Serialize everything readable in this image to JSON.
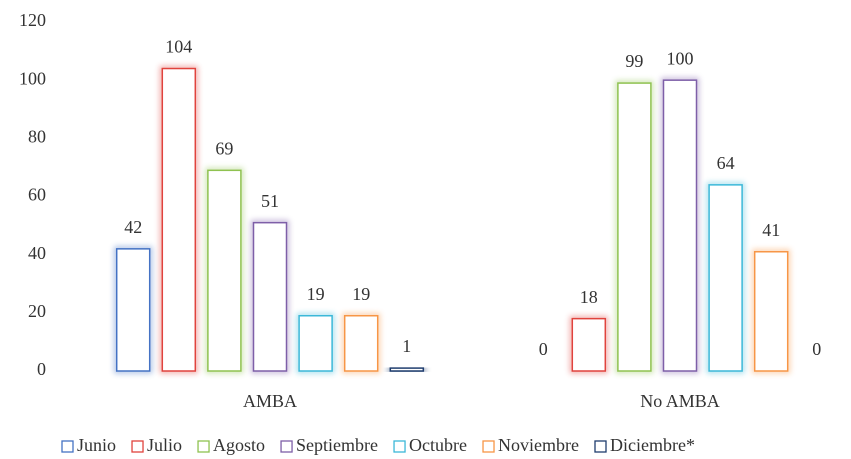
{
  "chart_data": {
    "type": "bar",
    "categories": [
      "AMBA",
      "No AMBA"
    ],
    "series": [
      {
        "name": "Junio",
        "color": "#4472c4",
        "values": [
          42,
          0
        ]
      },
      {
        "name": "Julio",
        "color": "#e0433d",
        "values": [
          104,
          18
        ]
      },
      {
        "name": "Agosto",
        "color": "#8fc250",
        "values": [
          69,
          99
        ]
      },
      {
        "name": "Septiembre",
        "color": "#7e5fa8",
        "values": [
          51,
          100
        ]
      },
      {
        "name": "Octubre",
        "color": "#3cb8d8",
        "values": [
          19,
          64
        ]
      },
      {
        "name": "Noviembre",
        "color": "#f79646",
        "values": [
          19,
          41
        ]
      },
      {
        "name": "Diciembre*",
        "color": "#1f3d6e",
        "values": [
          1,
          0
        ]
      }
    ],
    "ylim": [
      0,
      120
    ],
    "yticks": [
      0,
      20,
      40,
      60,
      80,
      100,
      120
    ],
    "legend": "bottom",
    "grid": false
  }
}
